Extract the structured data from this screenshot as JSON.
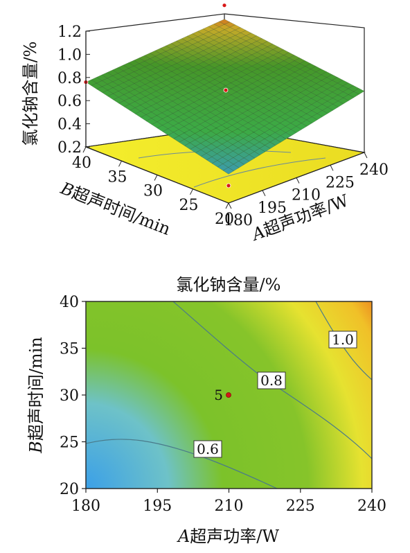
{
  "chart_data": [
    {
      "type": "surface3d",
      "zlabel": "氯化钠含量/%",
      "x_axis": {
        "italic": "A",
        "label": "超声功率/W",
        "ticks": [
          "180",
          "195",
          "210",
          "225",
          "240"
        ],
        "range": [
          180,
          240
        ]
      },
      "y_axis": {
        "italic": "B",
        "label": "超声时间/min",
        "ticks": [
          "20",
          "25",
          "30",
          "35",
          "40"
        ],
        "range": [
          20,
          40
        ]
      },
      "z_axis": {
        "ticks": [
          "0.2",
          "0.4",
          "0.6",
          "0.8",
          "1.0",
          "1.2"
        ],
        "range": [
          0.2,
          1.2
        ]
      },
      "corner_values": [
        {
          "x": 180,
          "y": 20,
          "z": 0.45
        },
        {
          "x": 240,
          "y": 20,
          "z": 0.73
        },
        {
          "x": 180,
          "y": 40,
          "z": 0.76
        },
        {
          "x": 240,
          "y": 40,
          "z": 1.13
        }
      ],
      "design_points": [
        {
          "x": 210,
          "y": 30,
          "z": 0.78
        },
        {
          "x": 240,
          "y": 40,
          "z": 1.25
        },
        {
          "x": 180,
          "y": 40,
          "z": 0.76
        },
        {
          "x": 180,
          "y": 20,
          "z": 0.35
        }
      ],
      "colors": {
        "low": "#3aa0e0",
        "mid": "#3cb034",
        "high": "#e02010",
        "floor": "#f2ea28"
      }
    },
    {
      "type": "contour",
      "title": "氯化钠含量/%",
      "x_axis": {
        "italic": "A",
        "label": "超声功率/W",
        "ticks": [
          "180",
          "195",
          "210",
          "225",
          "240"
        ],
        "range": [
          180,
          240
        ]
      },
      "y_axis": {
        "italic": "B",
        "label": "超声时间/min",
        "ticks": [
          "20",
          "25",
          "30",
          "35",
          "40"
        ],
        "range": [
          20,
          40
        ]
      },
      "contour_levels": [
        "0.6",
        "0.8",
        "1.0"
      ],
      "center_point": {
        "x": 210,
        "y": 30,
        "label": "5"
      },
      "colors": {
        "low": "#3aa0e0",
        "mid": "#7cc22a",
        "high": "#e02010"
      }
    }
  ]
}
